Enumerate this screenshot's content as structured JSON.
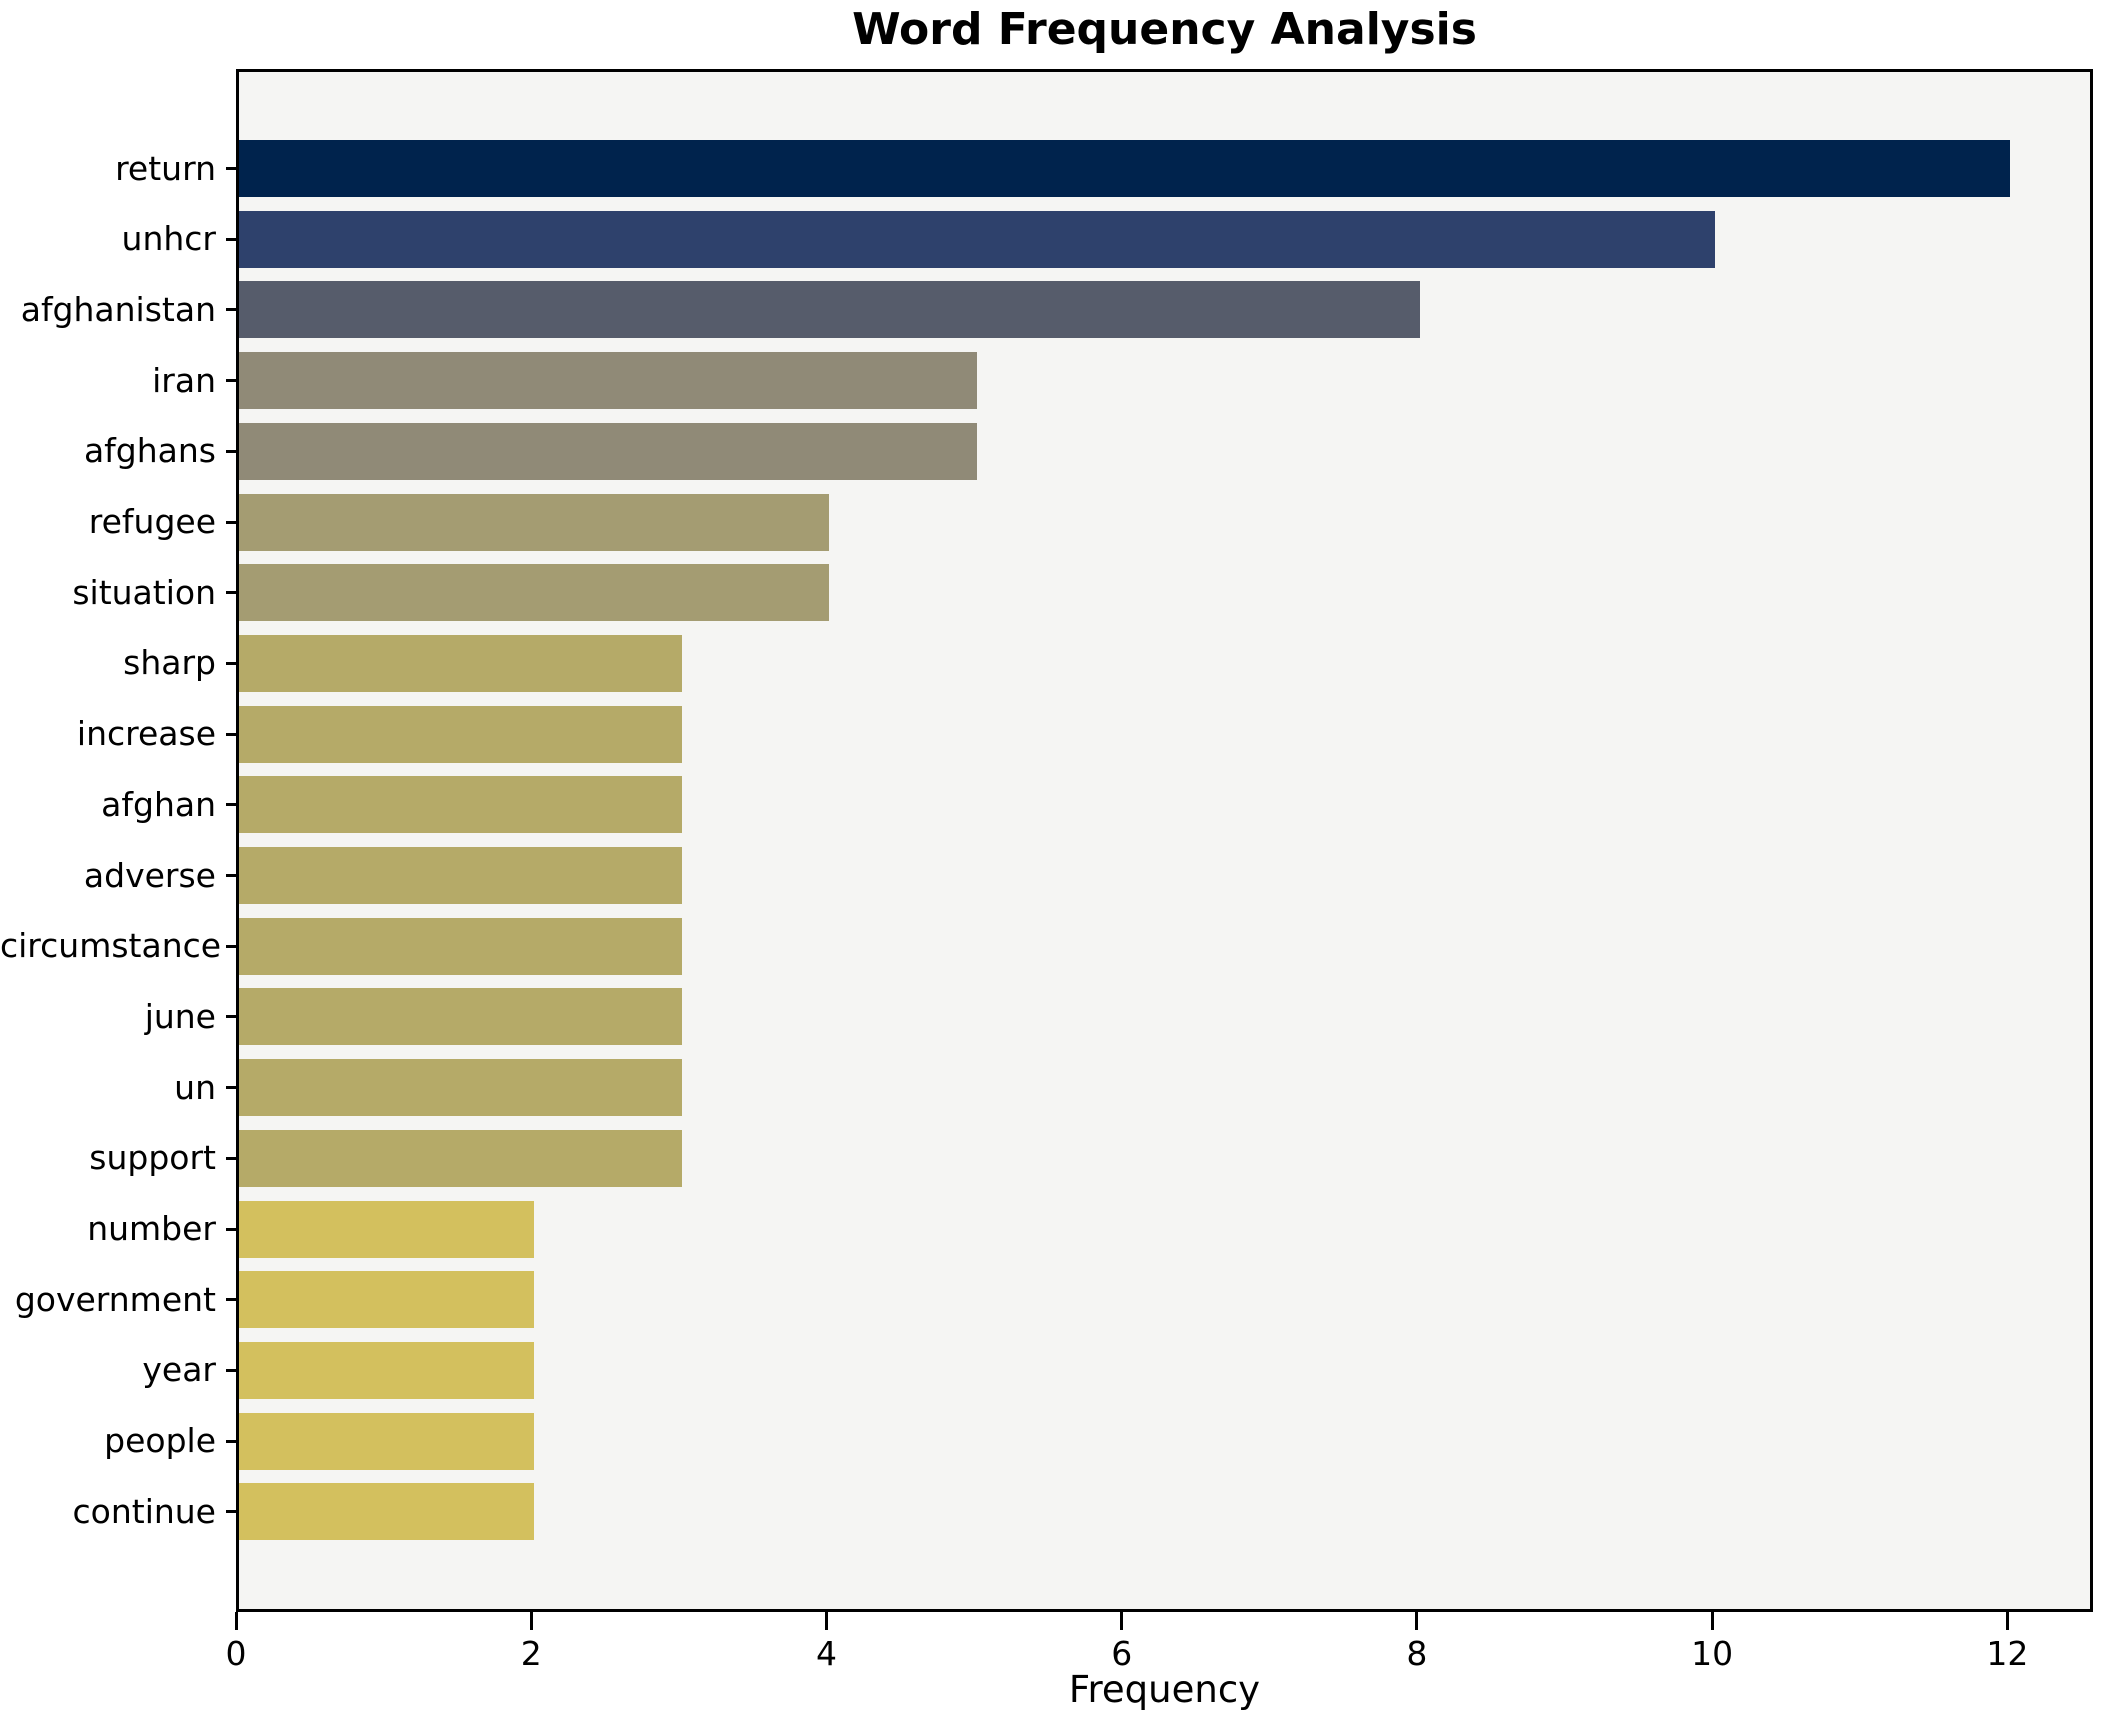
{
  "chart_data": {
    "type": "bar",
    "orientation": "horizontal",
    "title": "Word Frequency Analysis",
    "xlabel": "Frequency",
    "ylabel": "",
    "categories": [
      "return",
      "unhcr",
      "afghanistan",
      "iran",
      "afghans",
      "refugee",
      "situation",
      "sharp",
      "increase",
      "afghan",
      "adverse",
      "circumstance",
      "june",
      "un",
      "support",
      "number",
      "government",
      "year",
      "people",
      "continue"
    ],
    "values": [
      12,
      10,
      8,
      5,
      5,
      4,
      4,
      3,
      3,
      3,
      3,
      3,
      3,
      3,
      3,
      2,
      2,
      2,
      2,
      2
    ],
    "bar_colors": [
      "#00234d",
      "#2e416c",
      "#565c6b",
      "#908a77",
      "#908a77",
      "#a49c72",
      "#a49c72",
      "#b5aa68",
      "#b5aa68",
      "#b5aa68",
      "#b5aa68",
      "#b5aa68",
      "#b5aa68",
      "#b5aa68",
      "#b5aa68",
      "#d3c05e",
      "#d3c05e",
      "#d3c05e",
      "#d3c05e",
      "#d3c05e"
    ],
    "xlim": [
      0,
      12.58
    ],
    "xticks": [
      0,
      2,
      4,
      6,
      8,
      10,
      12
    ],
    "grid": false,
    "legend": "none",
    "plot_bg": "#f5f5f3",
    "figure_bg": "#ffffff",
    "spine_color": "#000000"
  }
}
